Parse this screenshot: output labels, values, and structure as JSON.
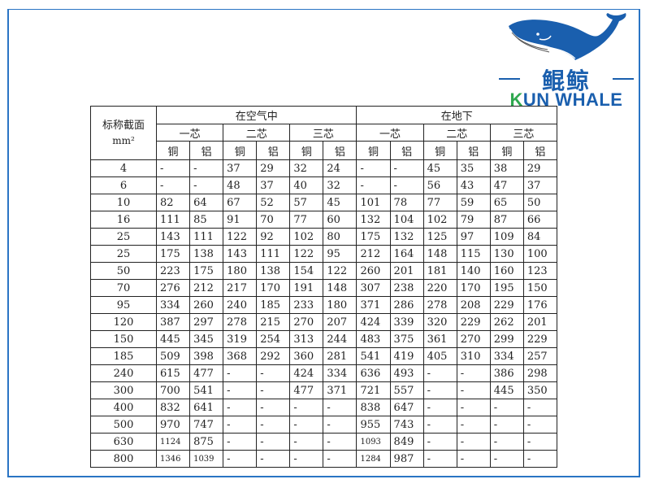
{
  "logo": {
    "cn": "鲲鲸",
    "en_k": "K",
    "en_rest": "UN WHALE",
    "brand_color": "#1a5fae",
    "accent_color": "#2fa84f"
  },
  "table": {
    "corner_label": "标称截面",
    "corner_unit": "mm²",
    "groups": [
      "在空气中",
      "在地下"
    ],
    "cores": [
      "一芯",
      "二芯",
      "三芯",
      "一芯",
      "二芯",
      "三芯"
    ],
    "metals": [
      "铜",
      "铝",
      "铜",
      "铝",
      "铜",
      "铝",
      "铜",
      "铝",
      "铜",
      "铝",
      "铜",
      "铝"
    ],
    "rows": [
      [
        "4",
        "-",
        "-",
        "37",
        "29",
        "32",
        "24",
        "-",
        "-",
        "45",
        "35",
        "38",
        "29"
      ],
      [
        "6",
        "-",
        "-",
        "48",
        "37",
        "40",
        "32",
        "-",
        "-",
        "56",
        "43",
        "47",
        "37"
      ],
      [
        "10",
        "82",
        "64",
        "67",
        "52",
        "57",
        "45",
        "101",
        "78",
        "77",
        "59",
        "65",
        "50"
      ],
      [
        "16",
        "111",
        "85",
        "91",
        "70",
        "77",
        "60",
        "132",
        "104",
        "102",
        "79",
        "87",
        "66"
      ],
      [
        "25",
        "143",
        "111",
        "122",
        "92",
        "102",
        "80",
        "175",
        "132",
        "125",
        "97",
        "109",
        "84"
      ],
      [
        "25",
        "175",
        "138",
        "143",
        "111",
        "122",
        "95",
        "212",
        "164",
        "148",
        "115",
        "130",
        "100"
      ],
      [
        "50",
        "223",
        "175",
        "180",
        "138",
        "154",
        "122",
        "260",
        "201",
        "181",
        "140",
        "160",
        "123"
      ],
      [
        "70",
        "276",
        "212",
        "217",
        "170",
        "191",
        "148",
        "307",
        "238",
        "220",
        "170",
        "195",
        "150"
      ],
      [
        "95",
        "334",
        "260",
        "240",
        "185",
        "233",
        "180",
        "371",
        "286",
        "278",
        "208",
        "229",
        "176"
      ],
      [
        "120",
        "387",
        "297",
        "278",
        "215",
        "270",
        "207",
        "424",
        "339",
        "320",
        "229",
        "262",
        "201"
      ],
      [
        "150",
        "445",
        "345",
        "319",
        "254",
        "313",
        "244",
        "483",
        "375",
        "361",
        "270",
        "299",
        "229"
      ],
      [
        "185",
        "509",
        "398",
        "368",
        "292",
        "360",
        "281",
        "541",
        "419",
        "405",
        "310",
        "334",
        "257"
      ],
      [
        "240",
        "615",
        "477",
        "-",
        "-",
        "424",
        "334",
        "636",
        "493",
        "-",
        "-",
        "386",
        "298"
      ],
      [
        "300",
        "700",
        "541",
        "-",
        "-",
        "477",
        "371",
        "721",
        "557",
        "-",
        "-",
        "445",
        "350"
      ],
      [
        "400",
        "832",
        "641",
        "-",
        "-",
        "-",
        "-",
        "838",
        "647",
        "-",
        "-",
        "-",
        "-"
      ],
      [
        "500",
        "970",
        "747",
        "-",
        "-",
        "-",
        "-",
        "955",
        "743",
        "-",
        "-",
        "-",
        "-"
      ],
      [
        "630",
        "1124",
        "875",
        "-",
        "-",
        "-",
        "-",
        "1093",
        "849",
        "-",
        "-",
        "-",
        "-"
      ],
      [
        "800",
        "1346",
        "1039",
        "-",
        "-",
        "-",
        "-",
        "1284",
        "987",
        "-",
        "-",
        "-",
        "-"
      ]
    ]
  }
}
